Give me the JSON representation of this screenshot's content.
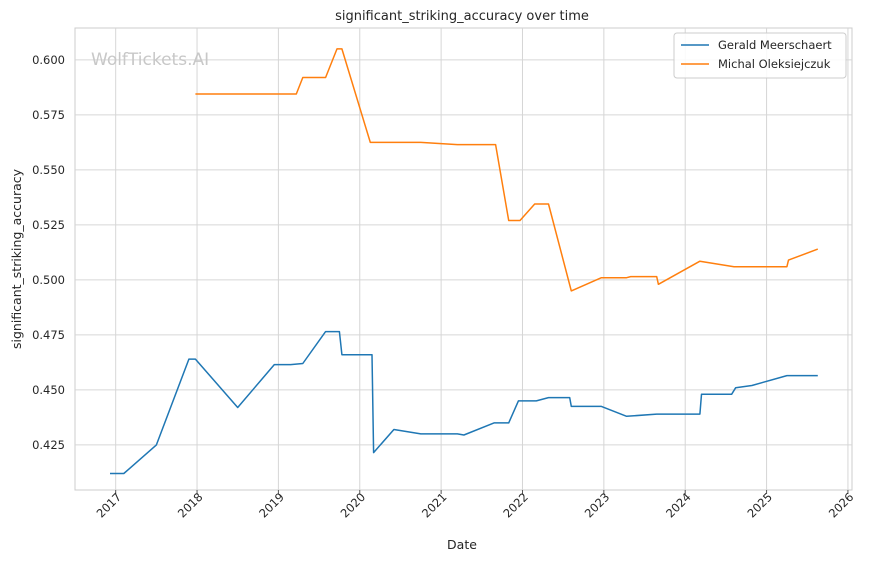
{
  "chart_data": {
    "type": "line",
    "title": "significant_striking_accuracy over time",
    "xlabel": "Date",
    "ylabel": "significant_striking_accuracy",
    "watermark": "WolfTickets.AI",
    "xlim": [
      2016.5,
      2026.05
    ],
    "ylim": [
      0.4045,
      0.6145
    ],
    "x_ticks": [
      {
        "value": 2017,
        "label": "2017"
      },
      {
        "value": 2018,
        "label": "2018"
      },
      {
        "value": 2019,
        "label": "2019"
      },
      {
        "value": 2020,
        "label": "2020"
      },
      {
        "value": 2021,
        "label": "2021"
      },
      {
        "value": 2022,
        "label": "2022"
      },
      {
        "value": 2023,
        "label": "2023"
      },
      {
        "value": 2024,
        "label": "2024"
      },
      {
        "value": 2025,
        "label": "2025"
      },
      {
        "value": 2026,
        "label": "2026"
      }
    ],
    "y_ticks": [
      {
        "value": 0.425,
        "label": "0.425"
      },
      {
        "value": 0.45,
        "label": "0.450"
      },
      {
        "value": 0.475,
        "label": "0.475"
      },
      {
        "value": 0.5,
        "label": "0.500"
      },
      {
        "value": 0.525,
        "label": "0.525"
      },
      {
        "value": 0.55,
        "label": "0.550"
      },
      {
        "value": 0.575,
        "label": "0.575"
      },
      {
        "value": 0.6,
        "label": "0.600"
      }
    ],
    "grid": true,
    "legend_position": "top-right",
    "series": [
      {
        "name": "Gerald Meerschaert",
        "color": "#1f77b4",
        "points": [
          [
            2016.93,
            0.412
          ],
          [
            2017.1,
            0.412
          ],
          [
            2017.5,
            0.425
          ],
          [
            2017.9,
            0.464
          ],
          [
            2017.98,
            0.464
          ],
          [
            2018.5,
            0.442
          ],
          [
            2018.95,
            0.4615
          ],
          [
            2019.15,
            0.4615
          ],
          [
            2019.3,
            0.462
          ],
          [
            2019.58,
            0.4765
          ],
          [
            2019.75,
            0.4765
          ],
          [
            2019.78,
            0.466
          ],
          [
            2020.15,
            0.466
          ],
          [
            2020.17,
            0.4215
          ],
          [
            2020.42,
            0.432
          ],
          [
            2020.75,
            0.43
          ],
          [
            2021.2,
            0.43
          ],
          [
            2021.28,
            0.4295
          ],
          [
            2021.65,
            0.435
          ],
          [
            2021.83,
            0.435
          ],
          [
            2021.95,
            0.445
          ],
          [
            2022.17,
            0.445
          ],
          [
            2022.32,
            0.4465
          ],
          [
            2022.58,
            0.4465
          ],
          [
            2022.6,
            0.4425
          ],
          [
            2022.97,
            0.4425
          ],
          [
            2023.28,
            0.438
          ],
          [
            2023.65,
            0.439
          ],
          [
            2024.18,
            0.439
          ],
          [
            2024.2,
            0.448
          ],
          [
            2024.57,
            0.448
          ],
          [
            2024.62,
            0.451
          ],
          [
            2024.82,
            0.452
          ],
          [
            2025.25,
            0.4565
          ],
          [
            2025.63,
            0.4565
          ]
        ]
      },
      {
        "name": "Michal Oleksiejczuk",
        "color": "#ff7f0e",
        "points": [
          [
            2017.98,
            0.5845
          ],
          [
            2019.22,
            0.5845
          ],
          [
            2019.3,
            0.592
          ],
          [
            2019.58,
            0.592
          ],
          [
            2019.72,
            0.605
          ],
          [
            2019.78,
            0.605
          ],
          [
            2020.13,
            0.5625
          ],
          [
            2020.75,
            0.5625
          ],
          [
            2021.2,
            0.5615
          ],
          [
            2021.67,
            0.5615
          ],
          [
            2021.83,
            0.527
          ],
          [
            2021.97,
            0.527
          ],
          [
            2022.15,
            0.5345
          ],
          [
            2022.32,
            0.5345
          ],
          [
            2022.6,
            0.495
          ],
          [
            2022.97,
            0.501
          ],
          [
            2023.28,
            0.501
          ],
          [
            2023.33,
            0.5015
          ],
          [
            2023.65,
            0.5015
          ],
          [
            2023.67,
            0.498
          ],
          [
            2024.18,
            0.5085
          ],
          [
            2024.6,
            0.506
          ],
          [
            2025.25,
            0.506
          ],
          [
            2025.27,
            0.509
          ],
          [
            2025.63,
            0.514
          ]
        ]
      }
    ]
  }
}
